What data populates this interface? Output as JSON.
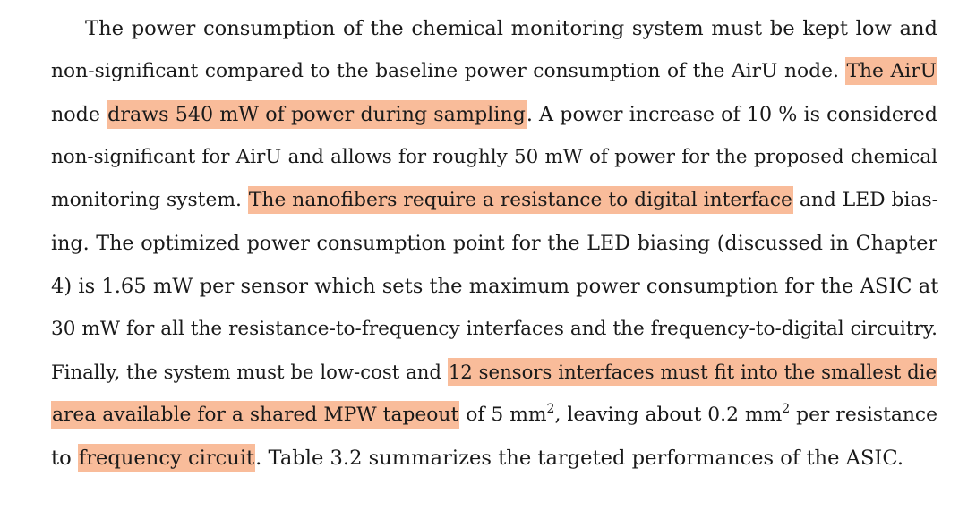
{
  "paragraph": {
    "lines": [
      {
        "segments": [
          {
            "text": "The power consumption of the chemical monitoring system must be kept low and",
            "hl": false
          }
        ]
      },
      {
        "segments": [
          {
            "text": "non-significant compared to the baseline power consumption of the AirU node. ",
            "hl": false
          },
          {
            "text": "The AirU",
            "hl": true
          }
        ]
      },
      {
        "segments": [
          {
            "text": "node ",
            "hl": false
          },
          {
            "text": "draws 540 mW of power during sampling",
            "hl": true
          },
          {
            "text": ". A power increase of 10 % is considered",
            "hl": false
          }
        ]
      },
      {
        "segments": [
          {
            "text": "non-significant for AirU and allows for roughly 50 mW of power for the proposed chemical",
            "hl": false
          }
        ]
      },
      {
        "segments": [
          {
            "text": "monitoring system. ",
            "hl": false
          },
          {
            "text": "The nanofibers require a resistance to digital interface",
            "hl": true
          },
          {
            "text": " and LED bias-",
            "hl": false
          }
        ]
      },
      {
        "segments": [
          {
            "text": "ing. The optimized power consumption point for the LED biasing (discussed in Chapter",
            "hl": false
          }
        ]
      },
      {
        "segments": [
          {
            "text": "4) is 1.65 mW per sensor which sets the maximum power consumption for the ASIC at",
            "hl": false
          }
        ]
      },
      {
        "segments": [
          {
            "text": "30 mW for all the resistance-to-frequency interfaces and the frequency-to-digital circuitry.",
            "hl": false
          }
        ]
      },
      {
        "segments": [
          {
            "text": "Finally, the system must be low-cost and ",
            "hl": false
          },
          {
            "text": "12 sensors interfaces must fit into the smallest die",
            "hl": true
          }
        ]
      },
      {
        "segments": [
          {
            "text": "area available for a shared MPW tapeout",
            "hl": true
          },
          {
            "text": " of 5 mm",
            "hl": false
          },
          {
            "text": "2",
            "hl": false,
            "sup": true
          },
          {
            "text": ", leaving about 0.2 mm",
            "hl": false
          },
          {
            "text": "2",
            "hl": false,
            "sup": true
          },
          {
            "text": " per resistance",
            "hl": false
          }
        ]
      },
      {
        "segments": [
          {
            "text": "to ",
            "hl": false
          },
          {
            "text": "frequency circuit",
            "hl": true
          },
          {
            "text": ". Table 3.2 summarizes the targeted performances of the ASIC.",
            "hl": false
          }
        ]
      }
    ]
  },
  "colors": {
    "highlight": "#f9bc9a",
    "text": "#1a1a1a",
    "background": "#ffffff"
  }
}
